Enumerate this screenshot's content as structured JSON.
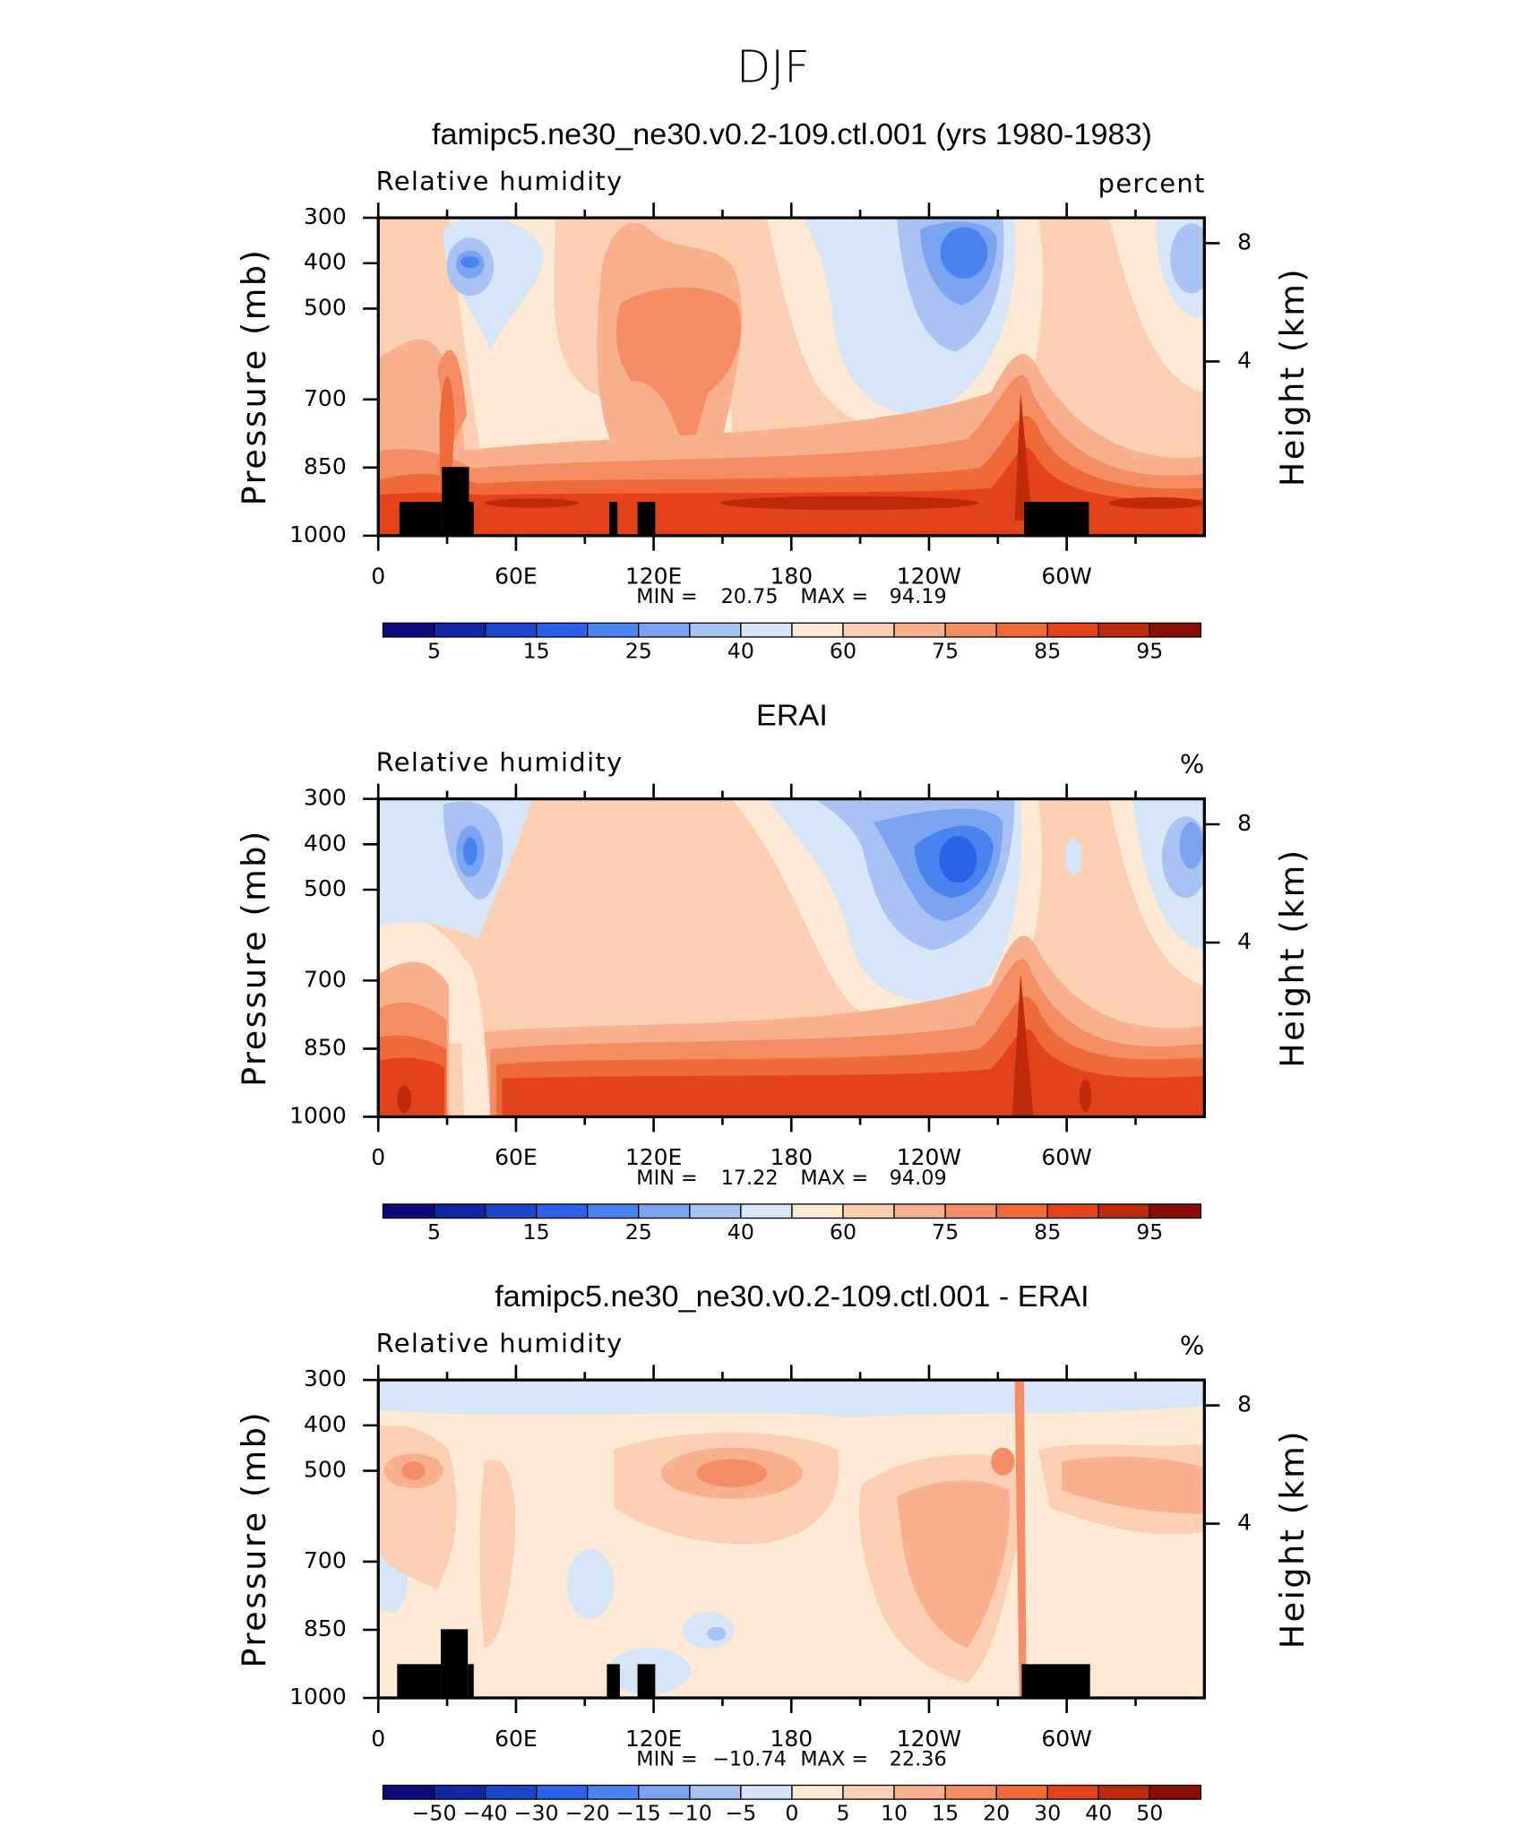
{
  "suptitle": "DJF",
  "chart_data": [
    {
      "type": "contour",
      "subtitle": "famipc5.ne30_ne30.v0.2-109.ctl.001 (yrs 1980-1983)",
      "left_label": "Relative humidity",
      "right_label": "percent",
      "ylabel": "Pressure (mb)",
      "y2label": "Height (km)",
      "xlim": [
        0,
        360
      ],
      "xticks": [
        0,
        {
          "value": 60,
          "label": "60E"
        },
        {
          "value": 120,
          "label": "120E"
        },
        180,
        {
          "value": 240,
          "label": "120W"
        },
        {
          "value": 300,
          "label": "60W"
        }
      ],
      "xminorticks": [
        30,
        90,
        150,
        210,
        270,
        330
      ],
      "ylim": [
        1000,
        300
      ],
      "yticks": [
        300,
        400,
        500,
        700,
        850,
        1000
      ],
      "y2ticks": [
        4,
        8
      ],
      "min_label": "MIN =",
      "min": 20.75,
      "max_label": "MAX =",
      "max": 94.19,
      "colorbar": {
        "colors": [
          "#0b0b7e",
          "#1127a6",
          "#1c45cc",
          "#2a62ea",
          "#4a82f0",
          "#7aa3f0",
          "#a8c3f3",
          "#d6e5f8",
          "#fde9d4",
          "#fccfb2",
          "#f9b08e",
          "#f48d64",
          "#ee6a3a",
          "#e2431a",
          "#bd2a0c",
          "#8a0e07"
        ],
        "levels": [
          5,
          15,
          25,
          40,
          60,
          75,
          85,
          95
        ]
      }
    },
    {
      "type": "contour",
      "subtitle": "ERAI",
      "left_label": "Relative humidity",
      "right_label": "%",
      "ylabel": "Pressure (mb)",
      "y2label": "Height (km)",
      "xlim": [
        0,
        360
      ],
      "xticks": [
        0,
        {
          "value": 60,
          "label": "60E"
        },
        {
          "value": 120,
          "label": "120E"
        },
        180,
        {
          "value": 240,
          "label": "120W"
        },
        {
          "value": 300,
          "label": "60W"
        }
      ],
      "xminorticks": [
        30,
        90,
        150,
        210,
        270,
        330
      ],
      "ylim": [
        1000,
        300
      ],
      "yticks": [
        300,
        400,
        500,
        700,
        850,
        1000
      ],
      "y2ticks": [
        4,
        8
      ],
      "min_label": "MIN =",
      "min": 17.22,
      "max_label": "MAX =",
      "max": 94.09,
      "colorbar": {
        "colors": [
          "#0b0b7e",
          "#1127a6",
          "#1c45cc",
          "#2a62ea",
          "#4a82f0",
          "#7aa3f0",
          "#a8c3f3",
          "#d6e5f8",
          "#fde9d4",
          "#fccfb2",
          "#f9b08e",
          "#f48d64",
          "#ee6a3a",
          "#e2431a",
          "#bd2a0c",
          "#8a0e07"
        ],
        "levels": [
          5,
          15,
          25,
          40,
          60,
          75,
          85,
          95
        ]
      }
    },
    {
      "type": "contour",
      "subtitle": "famipc5.ne30_ne30.v0.2-109.ctl.001 - ERAI",
      "left_label": "Relative humidity",
      "right_label": "%",
      "ylabel": "Pressure (mb)",
      "y2label": "Height (km)",
      "xlim": [
        0,
        360
      ],
      "xticks": [
        0,
        {
          "value": 60,
          "label": "60E"
        },
        {
          "value": 120,
          "label": "120E"
        },
        180,
        {
          "value": 240,
          "label": "120W"
        },
        {
          "value": 300,
          "label": "60W"
        }
      ],
      "xminorticks": [
        30,
        90,
        150,
        210,
        270,
        330
      ],
      "ylim": [
        1000,
        300
      ],
      "yticks": [
        300,
        400,
        500,
        700,
        850,
        1000
      ],
      "y2ticks": [
        4,
        8
      ],
      "min_label": "MIN =",
      "min": {
        "value": -10.74,
        "label": "−10.74"
      },
      "max_label": "MAX =",
      "max": 22.36,
      "colorbar": {
        "colors": [
          "#0b0b7e",
          "#1127a6",
          "#1c45cc",
          "#2a62ea",
          "#4a82f0",
          "#7aa3f0",
          "#a8c3f3",
          "#d6e5f8",
          "#fde9d4",
          "#fccfb2",
          "#f9b08e",
          "#f48d64",
          "#ee6a3a",
          "#e2431a",
          "#bd2a0c",
          "#8a0e07"
        ],
        "levels": [
          {
            "value": -50,
            "label": "−50"
          },
          {
            "value": -40,
            "label": "−40"
          },
          {
            "value": -30,
            "label": "−30"
          },
          {
            "value": -20,
            "label": "−20"
          },
          {
            "value": -15,
            "label": "−15"
          },
          {
            "value": -10,
            "label": "−10"
          },
          {
            "value": -5,
            "label": "−5"
          },
          0,
          5,
          10,
          15,
          20,
          30,
          40,
          50
        ]
      }
    }
  ]
}
